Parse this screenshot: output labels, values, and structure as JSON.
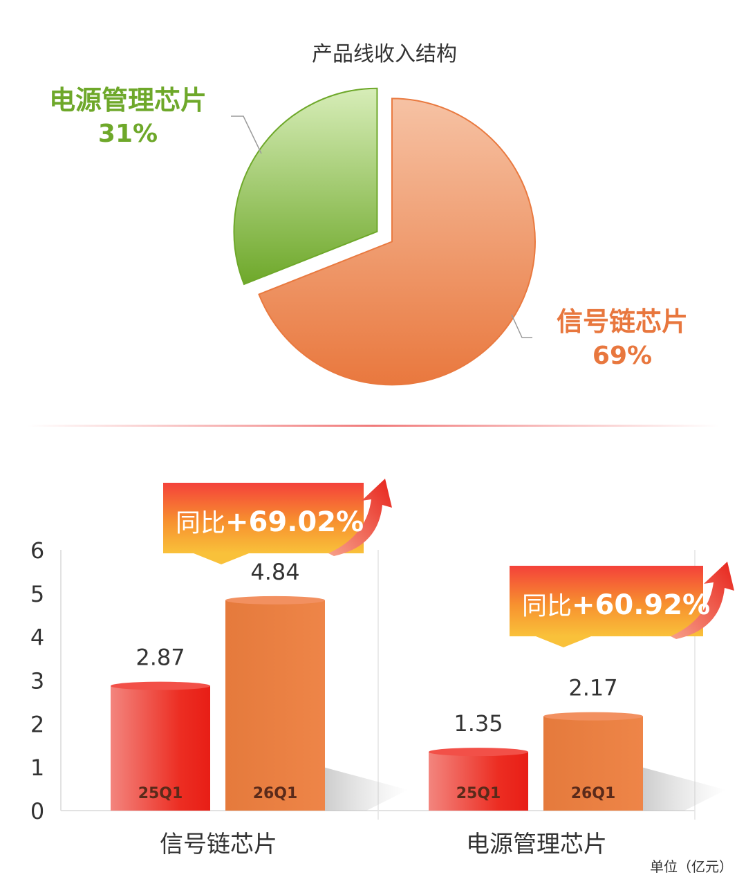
{
  "chart_data": [
    {
      "type": "pie",
      "title": "产品线收入结构",
      "slices": [
        {
          "label": "信号链芯片",
          "value": 69,
          "display": "69%",
          "color": "#E8773E"
        },
        {
          "label": "电源管理芯片",
          "value": 31,
          "display": "31%",
          "color": "#72AC2C"
        }
      ]
    },
    {
      "type": "bar",
      "categories": [
        "信号链芯片",
        "电源管理芯片"
      ],
      "series": [
        {
          "name": "25Q1",
          "values": [
            2.87,
            1.35
          ],
          "color": "#E8322A"
        },
        {
          "name": "26Q1",
          "values": [
            4.84,
            2.17
          ],
          "color": "#E97C3F"
        }
      ],
      "data_labels": [
        [
          "2.87",
          "4.84"
        ],
        [
          "1.35",
          "2.17"
        ]
      ],
      "ylim": [
        0,
        6
      ],
      "yticks": [
        "0",
        "1",
        "2",
        "3",
        "4",
        "5",
        "6"
      ],
      "unit": "单位（亿元）",
      "callouts": [
        {
          "category": "信号链芯片",
          "prefix": "同比",
          "value": "+69.02%"
        },
        {
          "category": "电源管理芯片",
          "prefix": "同比",
          "value": "+60.92%"
        }
      ],
      "grid": false
    }
  ]
}
